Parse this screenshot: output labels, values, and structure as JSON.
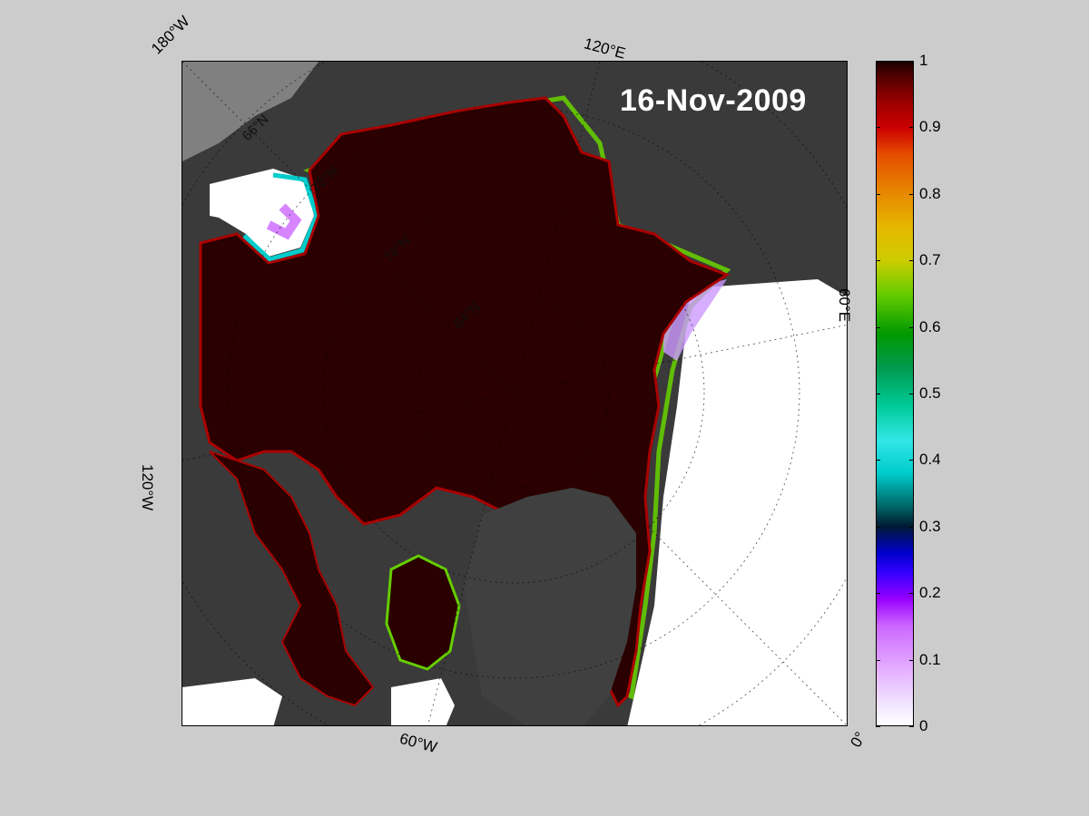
{
  "map": {
    "date": "16-Nov-2009",
    "longitude_labels": {
      "w180": "180°W",
      "e120": "120°E",
      "e60": "60°E",
      "w120": "120°W",
      "w60": "60°W",
      "zero": "0°"
    },
    "latitude_labels": [
      "66°N",
      "72°N",
      "78°N",
      "84°N"
    ],
    "colors": {
      "background": "#cccccc",
      "land": "#3a3a3a",
      "ice": "#2a0000",
      "open_water": "#ffffff",
      "land_ice_gray": "#808080"
    }
  },
  "colorbar": {
    "ticks": [
      "1",
      "0.9",
      "0.8",
      "0.7",
      "0.6",
      "0.5",
      "0.4",
      "0.3",
      "0.2",
      "0.1",
      "0"
    ],
    "tick_values": [
      1,
      0.9,
      0.8,
      0.7,
      0.6,
      0.5,
      0.4,
      0.3,
      0.2,
      0.1,
      0
    ],
    "range": [
      0,
      1
    ]
  }
}
